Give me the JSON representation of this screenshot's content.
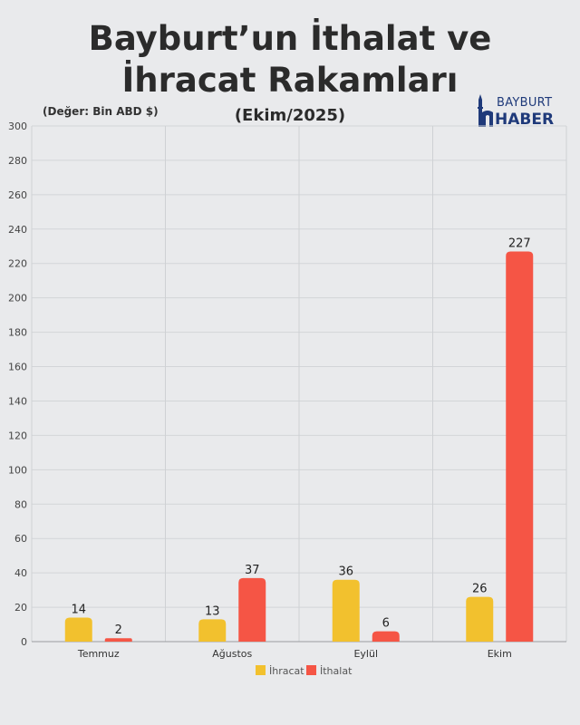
{
  "header": {
    "title_line1": "Bayburt’un İthalat ve",
    "title_line2": "İhracat Rakamları",
    "unit_note": "(Değer: Bin ABD $)",
    "period": "(Ekim/2025)"
  },
  "logo": {
    "top_text": "BAYBURT",
    "bottom_text": "HABER",
    "icon": "minaret-icon",
    "color": "#1f3a7a"
  },
  "chart_data": {
    "type": "bar",
    "categories": [
      "Temmuz",
      "Ağustos",
      "Eylül",
      "Ekim"
    ],
    "series": [
      {
        "name": "İhracat",
        "values": [
          14,
          13,
          36,
          26
        ],
        "color": "#f2c12e"
      },
      {
        "name": "İthalat",
        "values": [
          2,
          37,
          6,
          227
        ],
        "color": "#f55545"
      }
    ],
    "ylim": [
      0,
      300
    ],
    "yticks": [
      0,
      20,
      40,
      60,
      80,
      100,
      120,
      140,
      160,
      180,
      200,
      220,
      240,
      260,
      280,
      300
    ],
    "grid": true,
    "legend": "bottom",
    "xlabel": "",
    "ylabel": ""
  }
}
